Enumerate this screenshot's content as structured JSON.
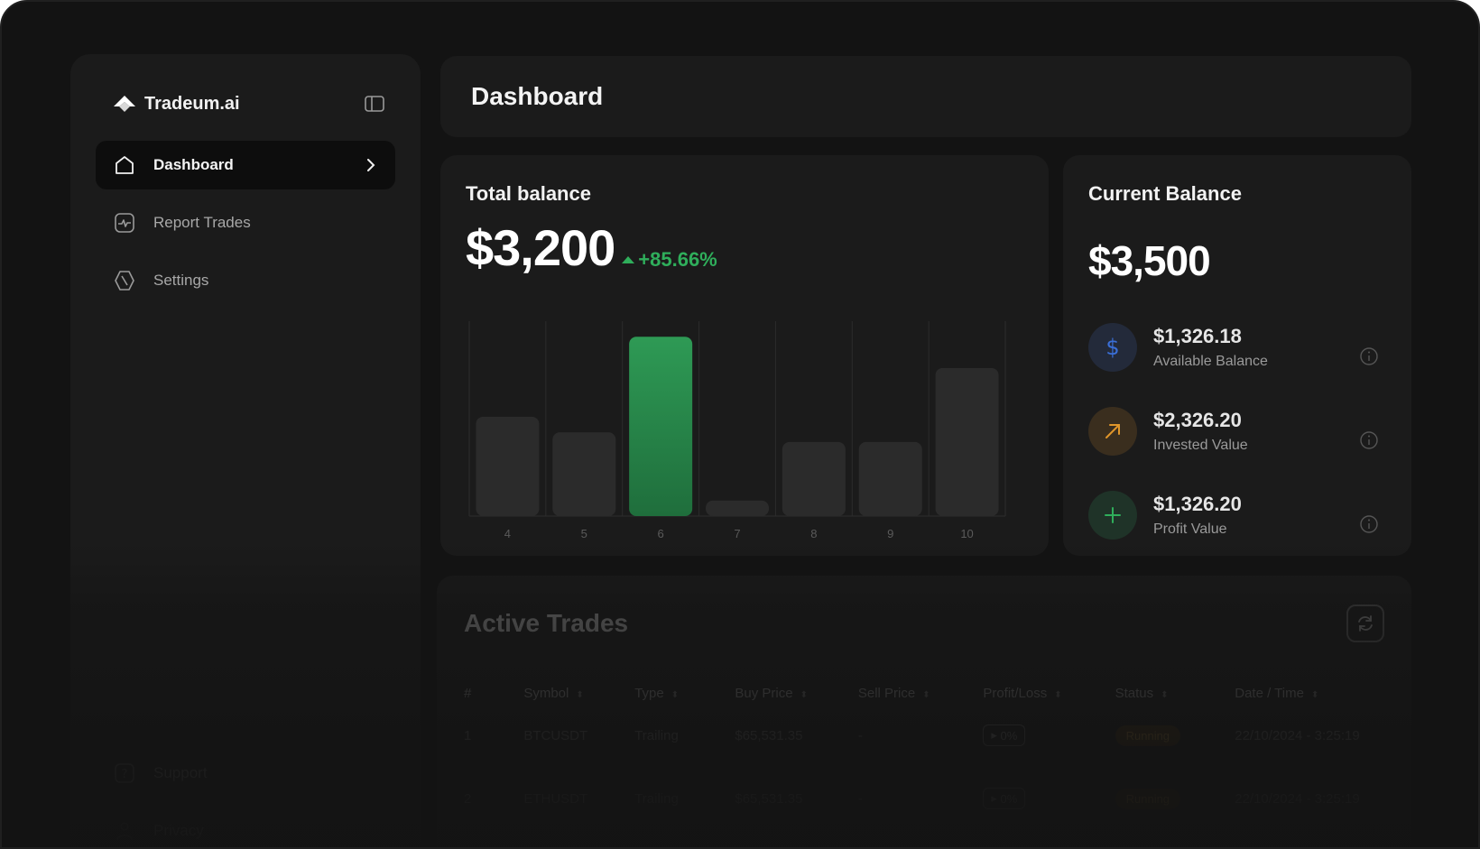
{
  "app": {
    "name": "Tradeum.ai"
  },
  "sidebar": {
    "items": [
      {
        "label": "Dashboard",
        "icon": "home-icon",
        "active": true
      },
      {
        "label": "Report Trades",
        "icon": "activity-icon",
        "active": false
      },
      {
        "label": "Settings",
        "icon": "settings-icon",
        "active": false
      }
    ],
    "bottom_items": [
      {
        "label": "Support",
        "icon": "help-icon"
      },
      {
        "label": "Privacy",
        "icon": "person-icon"
      }
    ]
  },
  "header": {
    "title": "Dashboard"
  },
  "total_balance": {
    "title": "Total balance",
    "amount": "$3,200",
    "change": "+85.66%",
    "change_color": "#2fae5b"
  },
  "chart_data": {
    "type": "bar",
    "categories": [
      "4",
      "5",
      "6",
      "7",
      "8",
      "9",
      "10"
    ],
    "values": [
      51,
      43,
      92,
      8,
      38,
      38,
      76
    ],
    "highlight_index": 2,
    "ylim": [
      0,
      100
    ],
    "colors": {
      "bar": "#2b2b2b",
      "highlight": "#2e9a55",
      "grid": "#2c2c2c"
    }
  },
  "current_balance": {
    "title": "Current Balance",
    "amount": "$3,500",
    "items": [
      {
        "value": "$1,326.18",
        "label": "Available Balance",
        "icon": "dollar-icon",
        "color": "#3a6fd8",
        "bg": "#232a3a"
      },
      {
        "value": "$2,326.20",
        "label": "Invested Value",
        "icon": "arrow-up-right-icon",
        "color": "#e0962a",
        "bg": "#3a2e1e"
      },
      {
        "value": "$1,326.20",
        "label": "Profit Value",
        "icon": "plus-icon",
        "color": "#2fae5b",
        "bg": "#1f3328"
      }
    ]
  },
  "active_trades": {
    "title": "Active Trades",
    "columns": [
      "#",
      "Symbol",
      "Type",
      "Buy Price",
      "Sell Price",
      "Profit/Loss",
      "Status",
      "Date / Time"
    ],
    "rows": [
      {
        "index": "1",
        "symbol": "BTCUSDT",
        "type": "Trailing",
        "buy": "$65,531.35",
        "sell": "-",
        "pl": "0%",
        "status": "Running",
        "datetime": "22/10/2024 - 3:25:19"
      },
      {
        "index": "2",
        "symbol": "ETHUSDT",
        "type": "Trailing",
        "buy": "$65,531.35",
        "sell": "-",
        "pl": "0%",
        "status": "Running",
        "datetime": "22/10/2024 - 3:25:19"
      }
    ]
  }
}
